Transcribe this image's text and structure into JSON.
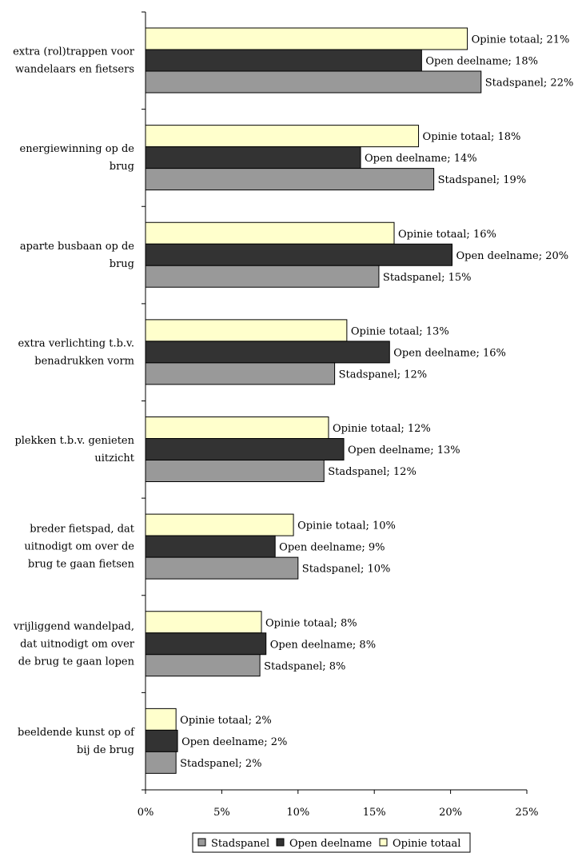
{
  "chart_data": {
    "type": "bar",
    "orientation": "horizontal",
    "categories": [
      [
        "extra (rol)trappen voor",
        "wandelaars en fietsers"
      ],
      [
        "energiewinning op de",
        "brug"
      ],
      [
        "aparte busbaan op de",
        "brug"
      ],
      [
        "extra verlichting t.b.v.",
        "benadrukken vorm"
      ],
      [
        "plekken t.b.v. genieten",
        "uitzicht"
      ],
      [
        "breder fietspad, dat",
        "uitnodigt om over de",
        "brug te gaan fietsen"
      ],
      [
        "vrijliggend wandelpad,",
        "dat uitnodigt om over",
        "de brug te gaan lopen"
      ],
      [
        "beeldende kunst op of",
        "bij de brug"
      ]
    ],
    "series": [
      {
        "name": "Opinie totaal",
        "color": "#ffffcc",
        "values": [
          21.1,
          17.9,
          16.3,
          13.2,
          12.0,
          9.7,
          7.6,
          2.0
        ],
        "labels": [
          "Opinie totaal; 21%",
          "Opinie totaal; 18%",
          "Opinie totaal; 16%",
          "Opinie totaal; 13%",
          "Opinie totaal; 12%",
          "Opinie totaal; 10%",
          "Opinie totaal; 8%",
          "Opinie totaal; 2%"
        ]
      },
      {
        "name": "Open deelname",
        "color": "#333333",
        "values": [
          18.1,
          14.1,
          20.1,
          16.0,
          13.0,
          8.5,
          7.9,
          2.1
        ],
        "labels": [
          "Open deelname; 18%",
          "Open deelname; 14%",
          "Open deelname; 20%",
          "Open deelname; 16%",
          "Open deelname; 13%",
          "Open deelname; 9%",
          "Open deelname; 8%",
          "Open deelname; 2%"
        ]
      },
      {
        "name": "Stadspanel",
        "color": "#999999",
        "values": [
          22.0,
          18.9,
          15.3,
          12.4,
          11.7,
          10.0,
          7.5,
          2.0
        ],
        "labels": [
          "Stadspanel; 22%",
          "Stadspanel; 19%",
          "Stadspanel; 15%",
          "Stadspanel; 12%",
          "Stadspanel; 12%",
          "Stadspanel; 10%",
          "Stadspanel; 8%",
          "Stadspanel; 2%"
        ]
      }
    ],
    "xlim": [
      0,
      25
    ],
    "xticks": [
      0,
      5,
      10,
      15,
      20,
      25
    ],
    "xtick_labels": [
      "0%",
      "5%",
      "10%",
      "15%",
      "20%",
      "25%"
    ],
    "grid": false,
    "legend": {
      "position": "bottom",
      "entries": [
        {
          "name": "Stadspanel",
          "color": "#999999"
        },
        {
          "name": "Open deelname",
          "color": "#333333"
        },
        {
          "name": "Opinie totaal",
          "color": "#ffffcc"
        }
      ]
    }
  }
}
